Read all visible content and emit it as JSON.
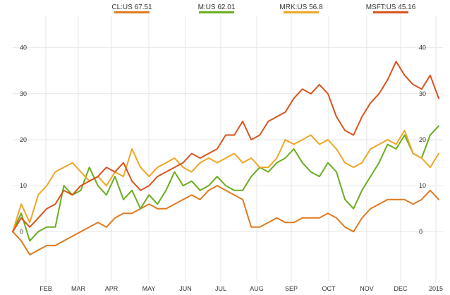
{
  "chart_data": {
    "type": "line",
    "title": "",
    "xlabel": "",
    "ylabel": "",
    "x_ticks": [
      "FEB",
      "MAR",
      "APR",
      "MAY",
      "JUN",
      "JUL",
      "AUG",
      "SEP",
      "OCT",
      "NOV",
      "DEC",
      "2015"
    ],
    "y_ticks": [
      0,
      10,
      20,
      30,
      40
    ],
    "y_tick_labels": [
      "0",
      "10",
      "20",
      "30",
      "40"
    ],
    "ylim": [
      -11,
      47
    ],
    "xlim": [
      0,
      50.5
    ],
    "grid": true,
    "legend_position": "top",
    "series": [
      {
        "name": "CL:US 67.51",
        "color": "#e07a1f",
        "x": [
          0,
          1,
          2,
          3,
          4,
          5,
          6,
          7,
          8,
          9,
          10,
          11,
          12,
          13,
          14,
          15,
          16,
          17,
          18,
          19,
          20,
          21,
          22,
          23,
          24,
          25,
          26,
          27,
          28,
          29,
          30,
          31,
          32,
          33,
          34,
          35,
          36,
          37,
          38,
          39,
          40,
          41,
          42,
          43,
          44,
          45,
          46,
          47,
          48,
          49,
          50
        ],
        "y": [
          0,
          -2,
          -5,
          -4,
          -3,
          -3,
          -2,
          -1,
          0,
          1,
          2,
          1,
          3,
          4,
          4,
          5,
          6,
          5,
          5,
          6,
          7,
          8,
          7,
          9,
          10,
          9,
          8,
          7,
          1,
          1,
          2,
          3,
          2,
          2,
          3,
          3,
          3,
          4,
          3,
          1,
          0,
          3,
          5,
          6,
          7,
          7,
          7,
          6,
          7,
          9,
          7
        ]
      },
      {
        "name": "M:US 62.01",
        "color": "#6aad1e",
        "x": [
          0,
          1,
          2,
          3,
          4,
          5,
          6,
          7,
          8,
          9,
          10,
          11,
          12,
          13,
          14,
          15,
          16,
          17,
          18,
          19,
          20,
          21,
          22,
          23,
          24,
          25,
          26,
          27,
          28,
          29,
          30,
          31,
          32,
          33,
          34,
          35,
          36,
          37,
          38,
          39,
          40,
          41,
          42,
          43,
          44,
          45,
          46,
          47,
          48,
          49,
          50
        ],
        "y": [
          0,
          4,
          -2,
          0,
          1,
          1,
          10,
          8,
          9,
          14,
          10,
          8,
          12,
          7,
          9,
          5,
          8,
          6,
          9,
          13,
          10,
          11,
          9,
          10,
          12,
          10,
          9,
          9,
          12,
          14,
          13,
          15,
          16,
          18,
          15,
          13,
          12,
          15,
          13,
          7,
          5,
          9,
          12,
          15,
          19,
          18,
          21,
          17,
          16,
          21,
          23
        ]
      },
      {
        "name": "MRK:US 56.8",
        "color": "#f0a523",
        "x": [
          0,
          1,
          2,
          3,
          4,
          5,
          6,
          7,
          8,
          9,
          10,
          11,
          12,
          13,
          14,
          15,
          16,
          17,
          18,
          19,
          20,
          21,
          22,
          23,
          24,
          25,
          26,
          27,
          28,
          29,
          30,
          31,
          32,
          33,
          34,
          35,
          36,
          37,
          38,
          39,
          40,
          41,
          42,
          43,
          44,
          45,
          46,
          47,
          48,
          49,
          50
        ],
        "y": [
          0,
          6,
          2,
          8,
          10,
          13,
          14,
          15,
          13,
          11,
          12,
          10,
          13,
          12,
          18,
          14,
          12,
          14,
          15,
          16,
          14,
          13,
          15,
          16,
          15,
          16,
          17,
          15,
          16,
          14,
          14,
          16,
          20,
          19,
          20,
          21,
          19,
          20,
          18,
          15,
          14,
          15,
          18,
          19,
          20,
          19,
          22,
          17,
          16,
          14,
          17
        ]
      },
      {
        "name": "MSFT:US 45.16",
        "color": "#d9531e",
        "x": [
          0,
          1,
          2,
          3,
          4,
          5,
          6,
          7,
          8,
          9,
          10,
          11,
          12,
          13,
          14,
          15,
          16,
          17,
          18,
          19,
          20,
          21,
          22,
          23,
          24,
          25,
          26,
          27,
          28,
          29,
          30,
          31,
          32,
          33,
          34,
          35,
          36,
          37,
          38,
          39,
          40,
          41,
          42,
          43,
          44,
          45,
          46,
          47,
          48,
          49,
          50
        ],
        "y": [
          0,
          3,
          1,
          3,
          5,
          6,
          9,
          8,
          10,
          11,
          12,
          14,
          13,
          15,
          11,
          9,
          10,
          12,
          13,
          14,
          15,
          17,
          16,
          17,
          18,
          21,
          21,
          24,
          20,
          21,
          24,
          25,
          26,
          29,
          31,
          30,
          32,
          30,
          25,
          22,
          21,
          25,
          28,
          30,
          33,
          37,
          34,
          32,
          31,
          34,
          29
        ]
      }
    ]
  }
}
